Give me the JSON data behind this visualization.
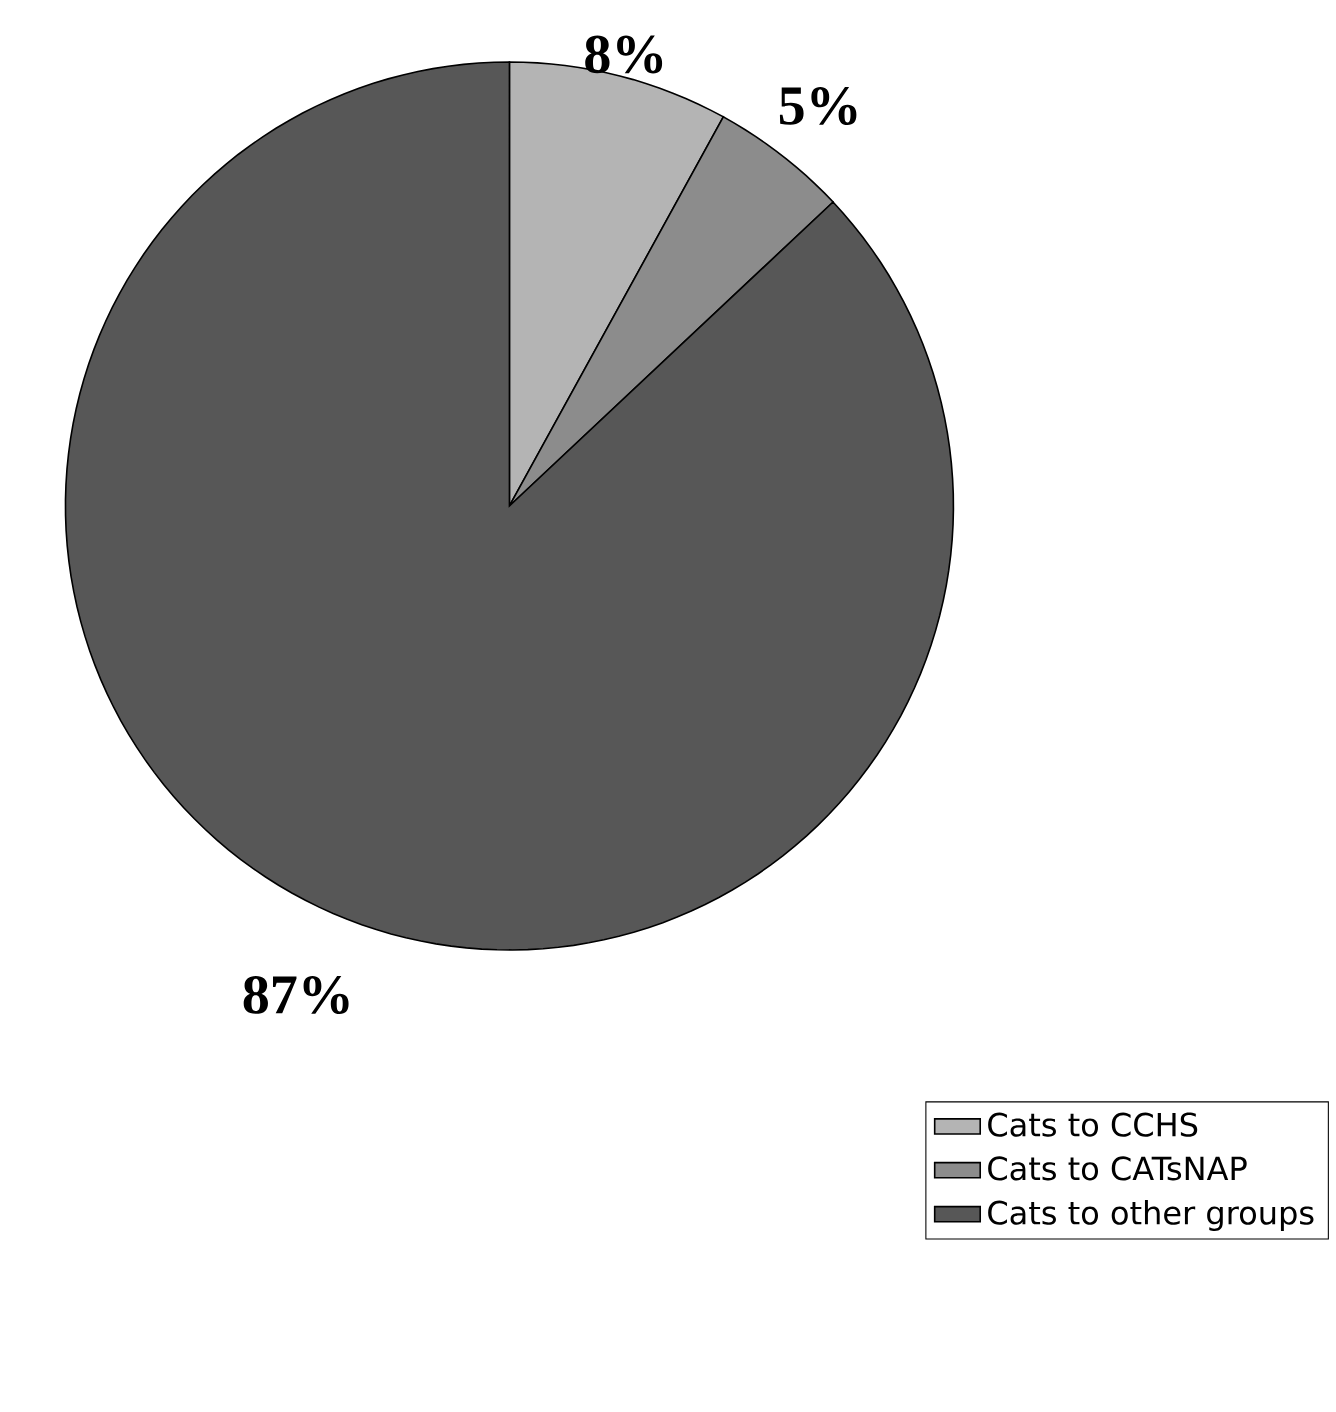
{
  "chart_data": {
    "type": "pie",
    "categories": [
      "Cats to CCHS",
      "Cats to CATsNAP",
      "Cats to other groups"
    ],
    "values": [
      8,
      5,
      87
    ],
    "colors": [
      "#b4b4b4",
      "#8c8c8c",
      "#575757"
    ],
    "value_labels": [
      "8%",
      "5%",
      "87%"
    ],
    "legend": "bottom right"
  }
}
